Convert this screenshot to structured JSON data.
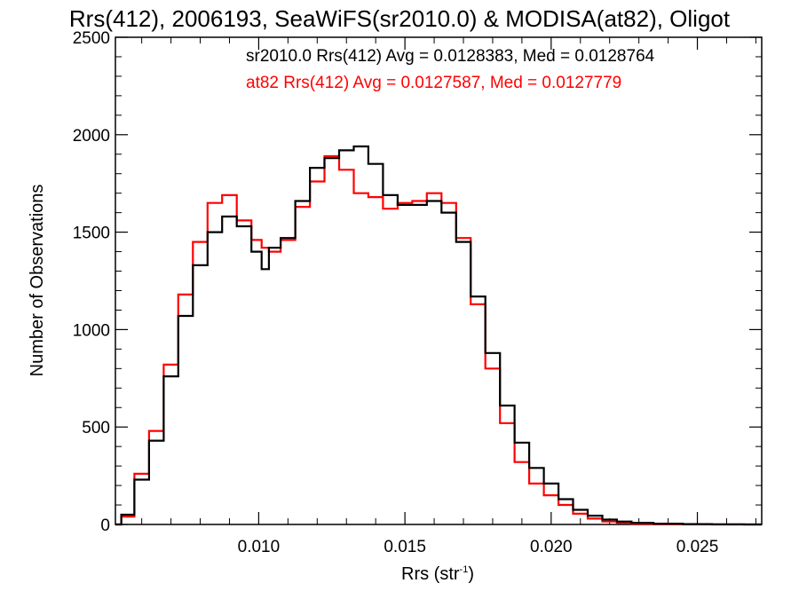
{
  "chart_data": {
    "type": "line",
    "title": "Rrs(412), 2006193, SeaWiFS(sr2010.0) & MODISA(at82), Oligot",
    "xlabel": "Rrs (str",
    "xlabel_sup": "-1",
    "xlabel_close": ")",
    "ylabel": "Number of Observations",
    "xlim": [
      0.0051,
      0.0272
    ],
    "ylim": [
      0,
      2500
    ],
    "xticks": [
      0.01,
      0.015,
      0.02,
      0.025
    ],
    "xtick_labels": [
      "0.010",
      "0.015",
      "0.020",
      "0.025"
    ],
    "yticks": [
      0,
      500,
      1000,
      1500,
      2000,
      2500
    ],
    "ytick_labels": [
      "0",
      "500",
      "1000",
      "1500",
      "2000",
      "2500"
    ],
    "grid": false,
    "legend_position": "top-right",
    "series": [
      {
        "name": "sr2010.0",
        "legend_text": "sr2010.0 Rrs(412) Avg = 0.0128383, Med = 0.0128764",
        "color": "#000000",
        "x": [
          0.0051,
          0.0055,
          0.006,
          0.0065,
          0.007,
          0.0075,
          0.008,
          0.0085,
          0.009,
          0.0095,
          0.01,
          0.0102,
          0.0105,
          0.011,
          0.0115,
          0.012,
          0.0125,
          0.013,
          0.0135,
          0.014,
          0.0145,
          0.015,
          0.0155,
          0.016,
          0.0165,
          0.017,
          0.0175,
          0.018,
          0.0185,
          0.019,
          0.0195,
          0.02,
          0.0205,
          0.021,
          0.0215,
          0.022,
          0.0225,
          0.023,
          0.024,
          0.025,
          0.026,
          0.0272
        ],
        "values": [
          0,
          50,
          230,
          430,
          760,
          1070,
          1330,
          1500,
          1580,
          1530,
          1400,
          1310,
          1420,
          1470,
          1660,
          1830,
          1880,
          1920,
          1940,
          1850,
          1690,
          1640,
          1640,
          1660,
          1600,
          1450,
          1170,
          880,
          610,
          420,
          290,
          210,
          130,
          75,
          45,
          25,
          15,
          8,
          4,
          2,
          1,
          0
        ]
      },
      {
        "name": "at82",
        "legend_text": "at82 Rrs(412) Avg = 0.0127587, Med = 0.0127779",
        "color": "#ff0000",
        "x": [
          0.0051,
          0.0055,
          0.006,
          0.0065,
          0.007,
          0.0075,
          0.008,
          0.0085,
          0.009,
          0.0095,
          0.01,
          0.0102,
          0.0105,
          0.011,
          0.0115,
          0.012,
          0.0125,
          0.013,
          0.0135,
          0.014,
          0.0145,
          0.015,
          0.0155,
          0.016,
          0.0165,
          0.017,
          0.0175,
          0.018,
          0.0185,
          0.019,
          0.0195,
          0.02,
          0.0205,
          0.021,
          0.0215,
          0.022,
          0.0225,
          0.023,
          0.024,
          0.025,
          0.026,
          0.0272
        ],
        "values": [
          0,
          40,
          260,
          480,
          820,
          1180,
          1450,
          1650,
          1690,
          1560,
          1460,
          1420,
          1400,
          1460,
          1630,
          1760,
          1890,
          1820,
          1700,
          1680,
          1620,
          1650,
          1660,
          1700,
          1650,
          1470,
          1130,
          800,
          520,
          320,
          210,
          150,
          100,
          55,
          30,
          15,
          8,
          4,
          2,
          1,
          0,
          0
        ]
      }
    ]
  }
}
